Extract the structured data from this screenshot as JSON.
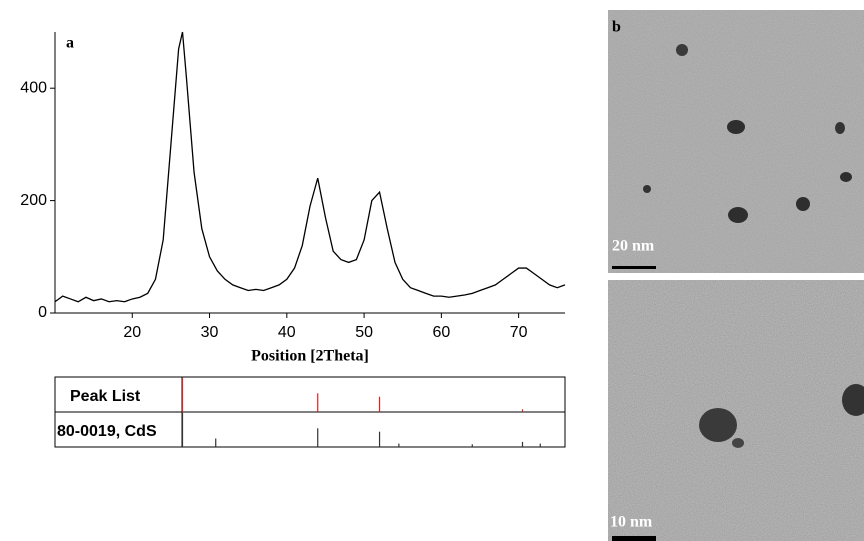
{
  "chart_data": {
    "type": "line",
    "panel_label": "a",
    "xlabel": "Position [2Theta]",
    "x": [
      10,
      11,
      12,
      13,
      14,
      15,
      16,
      17,
      18,
      19,
      20,
      21,
      22,
      23,
      24,
      25,
      26,
      26.5,
      27,
      28,
      29,
      30,
      31,
      32,
      33,
      34,
      35,
      36,
      37,
      38,
      39,
      40,
      41,
      42,
      43,
      44,
      45,
      46,
      47,
      48,
      49,
      50,
      51,
      52,
      53,
      54,
      55,
      56,
      57,
      58,
      59,
      60,
      61,
      62,
      63,
      64,
      65,
      66,
      67,
      68,
      69,
      70,
      71,
      72,
      73,
      74,
      75,
      76
    ],
    "series": [
      {
        "color": "#000000",
        "values": [
          20,
          30,
          25,
          20,
          28,
          22,
          25,
          20,
          22,
          20,
          25,
          28,
          35,
          60,
          130,
          300,
          470,
          500,
          420,
          250,
          150,
          100,
          75,
          60,
          50,
          45,
          40,
          42,
          40,
          45,
          50,
          60,
          80,
          120,
          190,
          240,
          170,
          110,
          95,
          90,
          95,
          130,
          200,
          215,
          150,
          90,
          60,
          45,
          40,
          35,
          30,
          30,
          28,
          30,
          32,
          35,
          40,
          45,
          50,
          60,
          70,
          80,
          80,
          70,
          60,
          50,
          45,
          50
        ]
      }
    ],
    "xlim": [
      10,
      76
    ],
    "ylim": [
      0,
      500
    ],
    "xticks": [
      20,
      30,
      40,
      50,
      60,
      70
    ],
    "yticks": [
      0,
      200,
      400
    ],
    "peak_list": {
      "label": "Peak List",
      "color": "#e0201c",
      "positions": [
        26.5,
        44,
        52,
        70.5
      ],
      "intensities": [
        100,
        55,
        45,
        8
      ]
    },
    "reference": {
      "label": "80-0019, CdS",
      "color": "#333333",
      "positions": [
        26.5,
        30.8,
        44,
        52,
        54.5,
        64,
        70.5,
        72.8
      ],
      "intensities": [
        100,
        25,
        55,
        45,
        10,
        8,
        15,
        10
      ]
    }
  },
  "images": {
    "panel_label": "b",
    "scale_top": "20 nm",
    "scale_bottom": "10 nm"
  }
}
